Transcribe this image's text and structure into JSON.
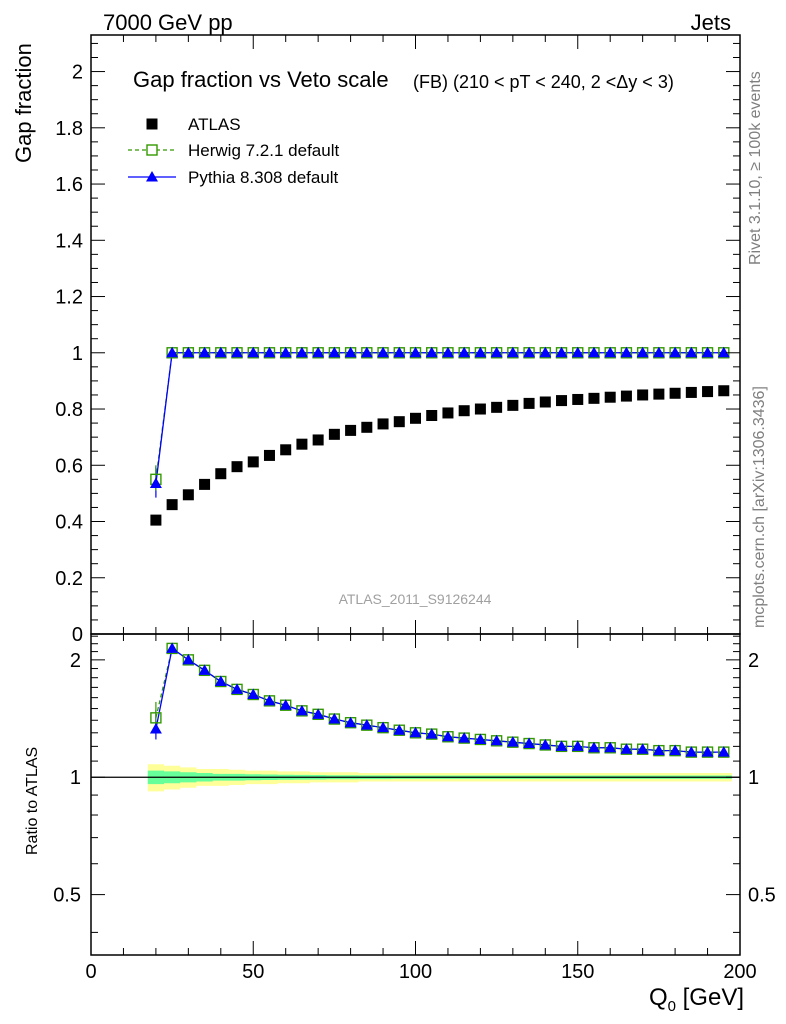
{
  "header": {
    "left": "7000 GeV pp",
    "right": "Jets"
  },
  "side_labels": {
    "rivet": "Rivet 3.1.10, ≥ 100k events",
    "mcplots": "mcplots.cern.ch [arXiv:1306.3436]"
  },
  "watermark": "ATLAS_2011_S9126244",
  "colors": {
    "atlas": "#000000",
    "herwig": "#339900",
    "pythia": "#0000ff",
    "band_outer": "#ffff99",
    "band_inner": "#66ff99"
  },
  "chart_data": [
    {
      "type": "scatter",
      "title": "Gap fraction vs Veto scale",
      "subtitle": "(FB) (210 < pT < 240, 2 <Δy < 3)",
      "xlabel": "",
      "ylabel": "Gap fraction",
      "xlim": [
        0,
        200
      ],
      "ylim": [
        0,
        2.13
      ],
      "yticks": [
        "0",
        "0.2",
        "0.4",
        "0.6",
        "0.8",
        "1",
        "1.2",
        "1.4",
        "1.6",
        "1.8",
        "2"
      ],
      "legend": [
        "ATLAS",
        "Herwig 7.2.1 default",
        "Pythia 8.308 default"
      ],
      "legend_position": "top-left",
      "x": [
        20,
        25,
        30,
        35,
        40,
        45,
        50,
        55,
        60,
        65,
        70,
        75,
        80,
        85,
        90,
        95,
        100,
        105,
        110,
        115,
        120,
        125,
        130,
        135,
        140,
        145,
        150,
        155,
        160,
        165,
        170,
        175,
        180,
        185,
        190,
        195
      ],
      "series": [
        {
          "name": "ATLAS",
          "marker": "square-filled",
          "values": [
            0.405,
            0.46,
            0.495,
            0.532,
            0.57,
            0.595,
            0.612,
            0.635,
            0.655,
            0.675,
            0.69,
            0.71,
            0.724,
            0.735,
            0.747,
            0.755,
            0.767,
            0.777,
            0.786,
            0.794,
            0.8,
            0.806,
            0.813,
            0.82,
            0.825,
            0.83,
            0.834,
            0.838,
            0.842,
            0.846,
            0.85,
            0.853,
            0.856,
            0.859,
            0.862,
            0.865
          ]
        },
        {
          "name": "Herwig 7.2.1 default",
          "marker": "square-open",
          "values": [
            0.55,
            1,
            1,
            1,
            1,
            1,
            1,
            1,
            1,
            1,
            1,
            1,
            1,
            1,
            1,
            1,
            1,
            1,
            1,
            1,
            1,
            1,
            1,
            1,
            1,
            1,
            1,
            1,
            1,
            1,
            1,
            1,
            1,
            1,
            1,
            1
          ]
        },
        {
          "name": "Pythia 8.308 default",
          "marker": "triangle-filled",
          "values": [
            0.535,
            1,
            1,
            1,
            1,
            1,
            1,
            1,
            1,
            1,
            1,
            1,
            1,
            1,
            1,
            1,
            1,
            1,
            1,
            1,
            1,
            1,
            1,
            1,
            1,
            1,
            1,
            1,
            1,
            1,
            1,
            1,
            1,
            1,
            1,
            1
          ]
        }
      ]
    },
    {
      "type": "line",
      "xlabel": "Q₀ [GeV]",
      "xlabel_main": "Q",
      "xlabel_sub": "0",
      "xlabel_unit": " [GeV]",
      "ylabel": "Ratio to ATLAS",
      "xlim": [
        0,
        200
      ],
      "ylim": [
        0.35,
        2.33
      ],
      "xticks": [
        "0",
        "50",
        "100",
        "150",
        "200"
      ],
      "yticks": [
        "0.5",
        "1",
        "2"
      ],
      "x": [
        20,
        25,
        30,
        35,
        40,
        45,
        50,
        55,
        60,
        65,
        70,
        75,
        80,
        85,
        90,
        95,
        100,
        105,
        110,
        115,
        120,
        125,
        130,
        135,
        140,
        145,
        150,
        155,
        160,
        165,
        170,
        175,
        180,
        185,
        190,
        195
      ],
      "series": [
        {
          "name": "Herwig 7.2.1 default",
          "values": [
            1.42,
            2.14,
            2.0,
            1.88,
            1.76,
            1.68,
            1.63,
            1.57,
            1.53,
            1.48,
            1.45,
            1.41,
            1.38,
            1.36,
            1.34,
            1.32,
            1.3,
            1.29,
            1.27,
            1.26,
            1.25,
            1.24,
            1.23,
            1.22,
            1.21,
            1.2,
            1.2,
            1.19,
            1.19,
            1.18,
            1.18,
            1.17,
            1.17,
            1.16,
            1.16,
            1.16
          ]
        },
        {
          "name": "Pythia 8.308 default",
          "values": [
            1.33,
            2.14,
            2.0,
            1.88,
            1.76,
            1.68,
            1.63,
            1.57,
            1.53,
            1.48,
            1.45,
            1.41,
            1.38,
            1.36,
            1.34,
            1.32,
            1.3,
            1.29,
            1.27,
            1.26,
            1.25,
            1.24,
            1.23,
            1.22,
            1.21,
            1.2,
            1.2,
            1.19,
            1.19,
            1.18,
            1.18,
            1.17,
            1.17,
            1.16,
            1.16,
            1.16
          ]
        }
      ],
      "band_outer_halfwidth": [
        0.08,
        0.07,
        0.06,
        0.05,
        0.05,
        0.045,
        0.04,
        0.04,
        0.035,
        0.035,
        0.03,
        0.03,
        0.03,
        0.025,
        0.025,
        0.025,
        0.025,
        0.025,
        0.025,
        0.025,
        0.025,
        0.025,
        0.025,
        0.025,
        0.025,
        0.025,
        0.025,
        0.025,
        0.025,
        0.025,
        0.025,
        0.025,
        0.025,
        0.025,
        0.025,
        0.025
      ],
      "band_inner_halfwidth": [
        0.04,
        0.035,
        0.03,
        0.025,
        0.02,
        0.02,
        0.018,
        0.016,
        0.015,
        0.014,
        0.013,
        0.012,
        0.012,
        0.011,
        0.011,
        0.01,
        0.01,
        0.01,
        0.01,
        0.01,
        0.01,
        0.01,
        0.01,
        0.01,
        0.01,
        0.01,
        0.01,
        0.01,
        0.01,
        0.01,
        0.01,
        0.01,
        0.01,
        0.01,
        0.01,
        0.01
      ]
    }
  ]
}
